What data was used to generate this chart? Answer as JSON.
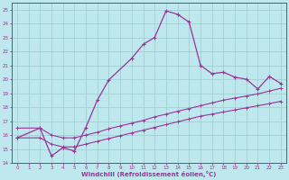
{
  "xlabel": "Windchill (Refroidissement éolien,°C)",
  "bg_color": "#bfe8ee",
  "grid_color": "#99cccc",
  "line_color": "#993399",
  "xlim": [
    -0.5,
    23.5
  ],
  "ylim": [
    14,
    25.5
  ],
  "yticks": [
    14,
    15,
    16,
    17,
    18,
    19,
    20,
    21,
    22,
    23,
    24,
    25
  ],
  "xticks": [
    0,
    1,
    2,
    3,
    4,
    5,
    6,
    7,
    8,
    9,
    10,
    11,
    12,
    13,
    14,
    15,
    16,
    17,
    18,
    19,
    20,
    21,
    22,
    23
  ],
  "curve_x": [
    0,
    2,
    3,
    4,
    5,
    6,
    7,
    8,
    10,
    11,
    12,
    13,
    14,
    15,
    16,
    17,
    18,
    19,
    20,
    21,
    22,
    23
  ],
  "curve_y": [
    15.8,
    16.5,
    14.5,
    15.1,
    14.85,
    16.55,
    18.5,
    19.95,
    21.5,
    22.5,
    23.0,
    24.9,
    24.65,
    24.1,
    21.0,
    20.4,
    20.5,
    20.15,
    20.0,
    19.3,
    20.2,
    19.7
  ],
  "lower_x": [
    0,
    2,
    3,
    4,
    5,
    6,
    7,
    8,
    9,
    10,
    11,
    12,
    13,
    14,
    15,
    16,
    17,
    18,
    19,
    20,
    21,
    22,
    23
  ],
  "lower_y": [
    15.8,
    15.8,
    15.35,
    15.15,
    15.15,
    15.35,
    15.55,
    15.75,
    15.95,
    16.15,
    16.35,
    16.55,
    16.75,
    16.95,
    17.15,
    17.35,
    17.5,
    17.65,
    17.8,
    17.95,
    18.1,
    18.25,
    18.42
  ],
  "upper_x": [
    0,
    2,
    3,
    4,
    5,
    6,
    7,
    8,
    9,
    10,
    11,
    12,
    13,
    14,
    15,
    16,
    17,
    18,
    19,
    20,
    21,
    22,
    23
  ],
  "upper_y": [
    16.5,
    16.5,
    16.0,
    15.8,
    15.8,
    16.0,
    16.2,
    16.45,
    16.65,
    16.85,
    17.05,
    17.3,
    17.5,
    17.7,
    17.9,
    18.1,
    18.3,
    18.5,
    18.65,
    18.8,
    18.95,
    19.15,
    19.35
  ]
}
